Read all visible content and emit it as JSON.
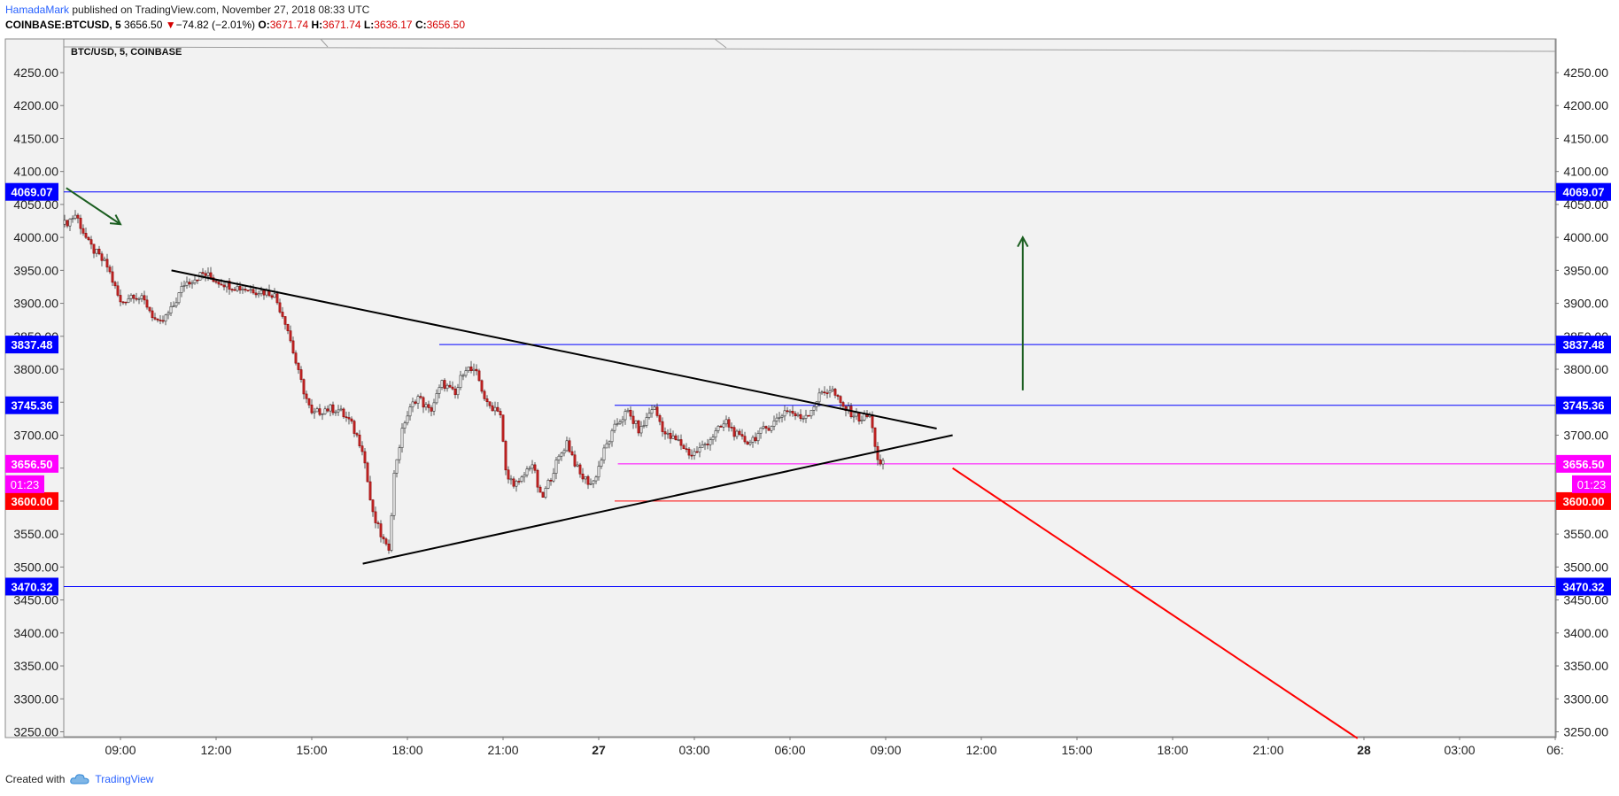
{
  "header": {
    "author": "HamadaMark",
    "published": "published on TradingView.com, November 27, 2018 08:33 UTC",
    "symbol": "COINBASE:BTCUSD, 5",
    "last": "3656.50",
    "change_arrow": "▼",
    "change": "−74.82 (−2.01%)",
    "open_label": "O:",
    "open": "3671.74",
    "high_label": "H:",
    "high": "3671.74",
    "low_label": "L:",
    "low": "3636.17",
    "close_label": "C:",
    "close": "3656.50"
  },
  "pane_title": "BTC/USD, 5, COINBASE",
  "footer": {
    "created_with": "Created with",
    "brand": "TradingView",
    "logo_icon": "tradingview-cloud-icon"
  },
  "colors": {
    "up_candle": "#ffffff",
    "down_candle": "#c62828",
    "level_blue": "#0000ff",
    "level_red": "#ff0000",
    "last_price": "#ff00ff",
    "arrow_green": "#1b5e20",
    "triangle": "#000000",
    "pane_bg": "#f2f2f2"
  },
  "chart_data": {
    "type": "candlestick",
    "title": "BTC/USD, 5, COINBASE",
    "ylim": [
      3240,
      4280
    ],
    "y_ticks": [
      "4250.00",
      "4200.00",
      "4150.00",
      "4100.00",
      "4050.00",
      "4000.00",
      "3950.00",
      "3900.00",
      "3850.00",
      "3800.00",
      "3750.00",
      "3700.00",
      "3650.00",
      "3600.00",
      "3550.00",
      "3500.00",
      "3450.00",
      "3400.00",
      "3350.00",
      "3300.00",
      "3250.00"
    ],
    "x_range_hours": [
      7.2,
      54.5
    ],
    "x_ticks": [
      {
        "h": 9,
        "label": "09:00"
      },
      {
        "h": 12,
        "label": "12:00"
      },
      {
        "h": 15,
        "label": "15:00"
      },
      {
        "h": 18,
        "label": "18:00"
      },
      {
        "h": 21,
        "label": "21:00"
      },
      {
        "h": 24,
        "label": "27",
        "bold": true
      },
      {
        "h": 27,
        "label": "03:00"
      },
      {
        "h": 30,
        "label": "06:00"
      },
      {
        "h": 33,
        "label": "09:00"
      },
      {
        "h": 36,
        "label": "12:00"
      },
      {
        "h": 39,
        "label": "15:00"
      },
      {
        "h": 42,
        "label": "18:00"
      },
      {
        "h": 45,
        "label": "21:00"
      },
      {
        "h": 48,
        "label": "28",
        "bold": true
      },
      {
        "h": 51,
        "label": "03:00"
      },
      {
        "h": 54,
        "label": "06:"
      }
    ],
    "price_path": [
      [
        7.25,
        4020
      ],
      [
        7.6,
        4035
      ],
      [
        8.0,
        3990
      ],
      [
        8.6,
        3955
      ],
      [
        9.0,
        3900
      ],
      [
        9.4,
        3915
      ],
      [
        9.8,
        3900
      ],
      [
        10.2,
        3865
      ],
      [
        10.6,
        3890
      ],
      [
        11.0,
        3930
      ],
      [
        11.6,
        3945
      ],
      [
        12.0,
        3935
      ],
      [
        12.6,
        3925
      ],
      [
        13.2,
        3920
      ],
      [
        13.8,
        3915
      ],
      [
        14.2,
        3870
      ],
      [
        14.6,
        3790
      ],
      [
        15.0,
        3730
      ],
      [
        15.4,
        3740
      ],
      [
        15.8,
        3740
      ],
      [
        16.2,
        3720
      ],
      [
        16.6,
        3680
      ],
      [
        16.9,
        3580
      ],
      [
        17.2,
        3545
      ],
      [
        17.4,
        3520
      ],
      [
        17.6,
        3650
      ],
      [
        17.9,
        3720
      ],
      [
        18.3,
        3760
      ],
      [
        18.7,
        3735
      ],
      [
        19.1,
        3780
      ],
      [
        19.5,
        3760
      ],
      [
        19.8,
        3805
      ],
      [
        20.2,
        3790
      ],
      [
        20.5,
        3745
      ],
      [
        20.9,
        3740
      ],
      [
        21.1,
        3635
      ],
      [
        21.5,
        3625
      ],
      [
        21.9,
        3660
      ],
      [
        22.2,
        3600
      ],
      [
        22.6,
        3650
      ],
      [
        23.0,
        3690
      ],
      [
        23.4,
        3640
      ],
      [
        23.8,
        3625
      ],
      [
        24.2,
        3680
      ],
      [
        24.6,
        3720
      ],
      [
        24.9,
        3735
      ],
      [
        25.3,
        3705
      ],
      [
        25.7,
        3745
      ],
      [
        26.1,
        3700
      ],
      [
        26.5,
        3690
      ],
      [
        26.9,
        3670
      ],
      [
        27.2,
        3680
      ],
      [
        27.6,
        3700
      ],
      [
        28.0,
        3720
      ],
      [
        28.4,
        3695
      ],
      [
        28.7,
        3690
      ],
      [
        29.1,
        3705
      ],
      [
        29.5,
        3720
      ],
      [
        29.9,
        3740
      ],
      [
        30.3,
        3725
      ],
      [
        30.6,
        3735
      ],
      [
        31.0,
        3765
      ],
      [
        31.3,
        3770
      ],
      [
        31.6,
        3745
      ],
      [
        31.9,
        3735
      ],
      [
        32.2,
        3725
      ],
      [
        32.5,
        3730
      ],
      [
        32.8,
        3652
      ],
      [
        32.95,
        3656.5
      ]
    ],
    "levels": [
      {
        "price": 4069.07,
        "label": "4069.07",
        "color": "#0000ff",
        "from_h": 7.2
      },
      {
        "price": 3837.48,
        "label": "3837.48",
        "color": "#0000ff",
        "from_h": 19.0
      },
      {
        "price": 3745.36,
        "label": "3745.36",
        "color": "#0000ff",
        "from_h": 24.5
      },
      {
        "price": 3656.5,
        "label": "3656.50",
        "color": "#ff00ff",
        "from_h": 24.6
      },
      {
        "price": 3600.0,
        "label": "3600.00",
        "color": "#ff0000",
        "from_h": 24.5
      },
      {
        "price": 3470.32,
        "label": "3470.32",
        "color": "#0000ff",
        "from_h": 7.2
      }
    ],
    "countdown": "01:23",
    "trendlines": [
      {
        "name": "triangle-upper-line",
        "from": [
          10.6,
          3950
        ],
        "to": [
          34.6,
          3710
        ],
        "color": "#000000"
      },
      {
        "name": "triangle-lower-line",
        "from": [
          16.6,
          3505
        ],
        "to": [
          35.1,
          3700
        ],
        "color": "#000000"
      },
      {
        "name": "bearish-projection-line",
        "from": [
          35.1,
          3650
        ],
        "to": [
          47.8,
          3240
        ],
        "color": "#ff0000"
      }
    ],
    "arrows": [
      {
        "name": "down-arrow",
        "from": [
          7.3,
          4075
        ],
        "to": [
          9.0,
          4020
        ],
        "color": "#1b5e20"
      },
      {
        "name": "up-arrow",
        "from": [
          37.3,
          3768
        ],
        "to": [
          37.3,
          4000
        ],
        "color": "#1b5e20"
      }
    ]
  }
}
